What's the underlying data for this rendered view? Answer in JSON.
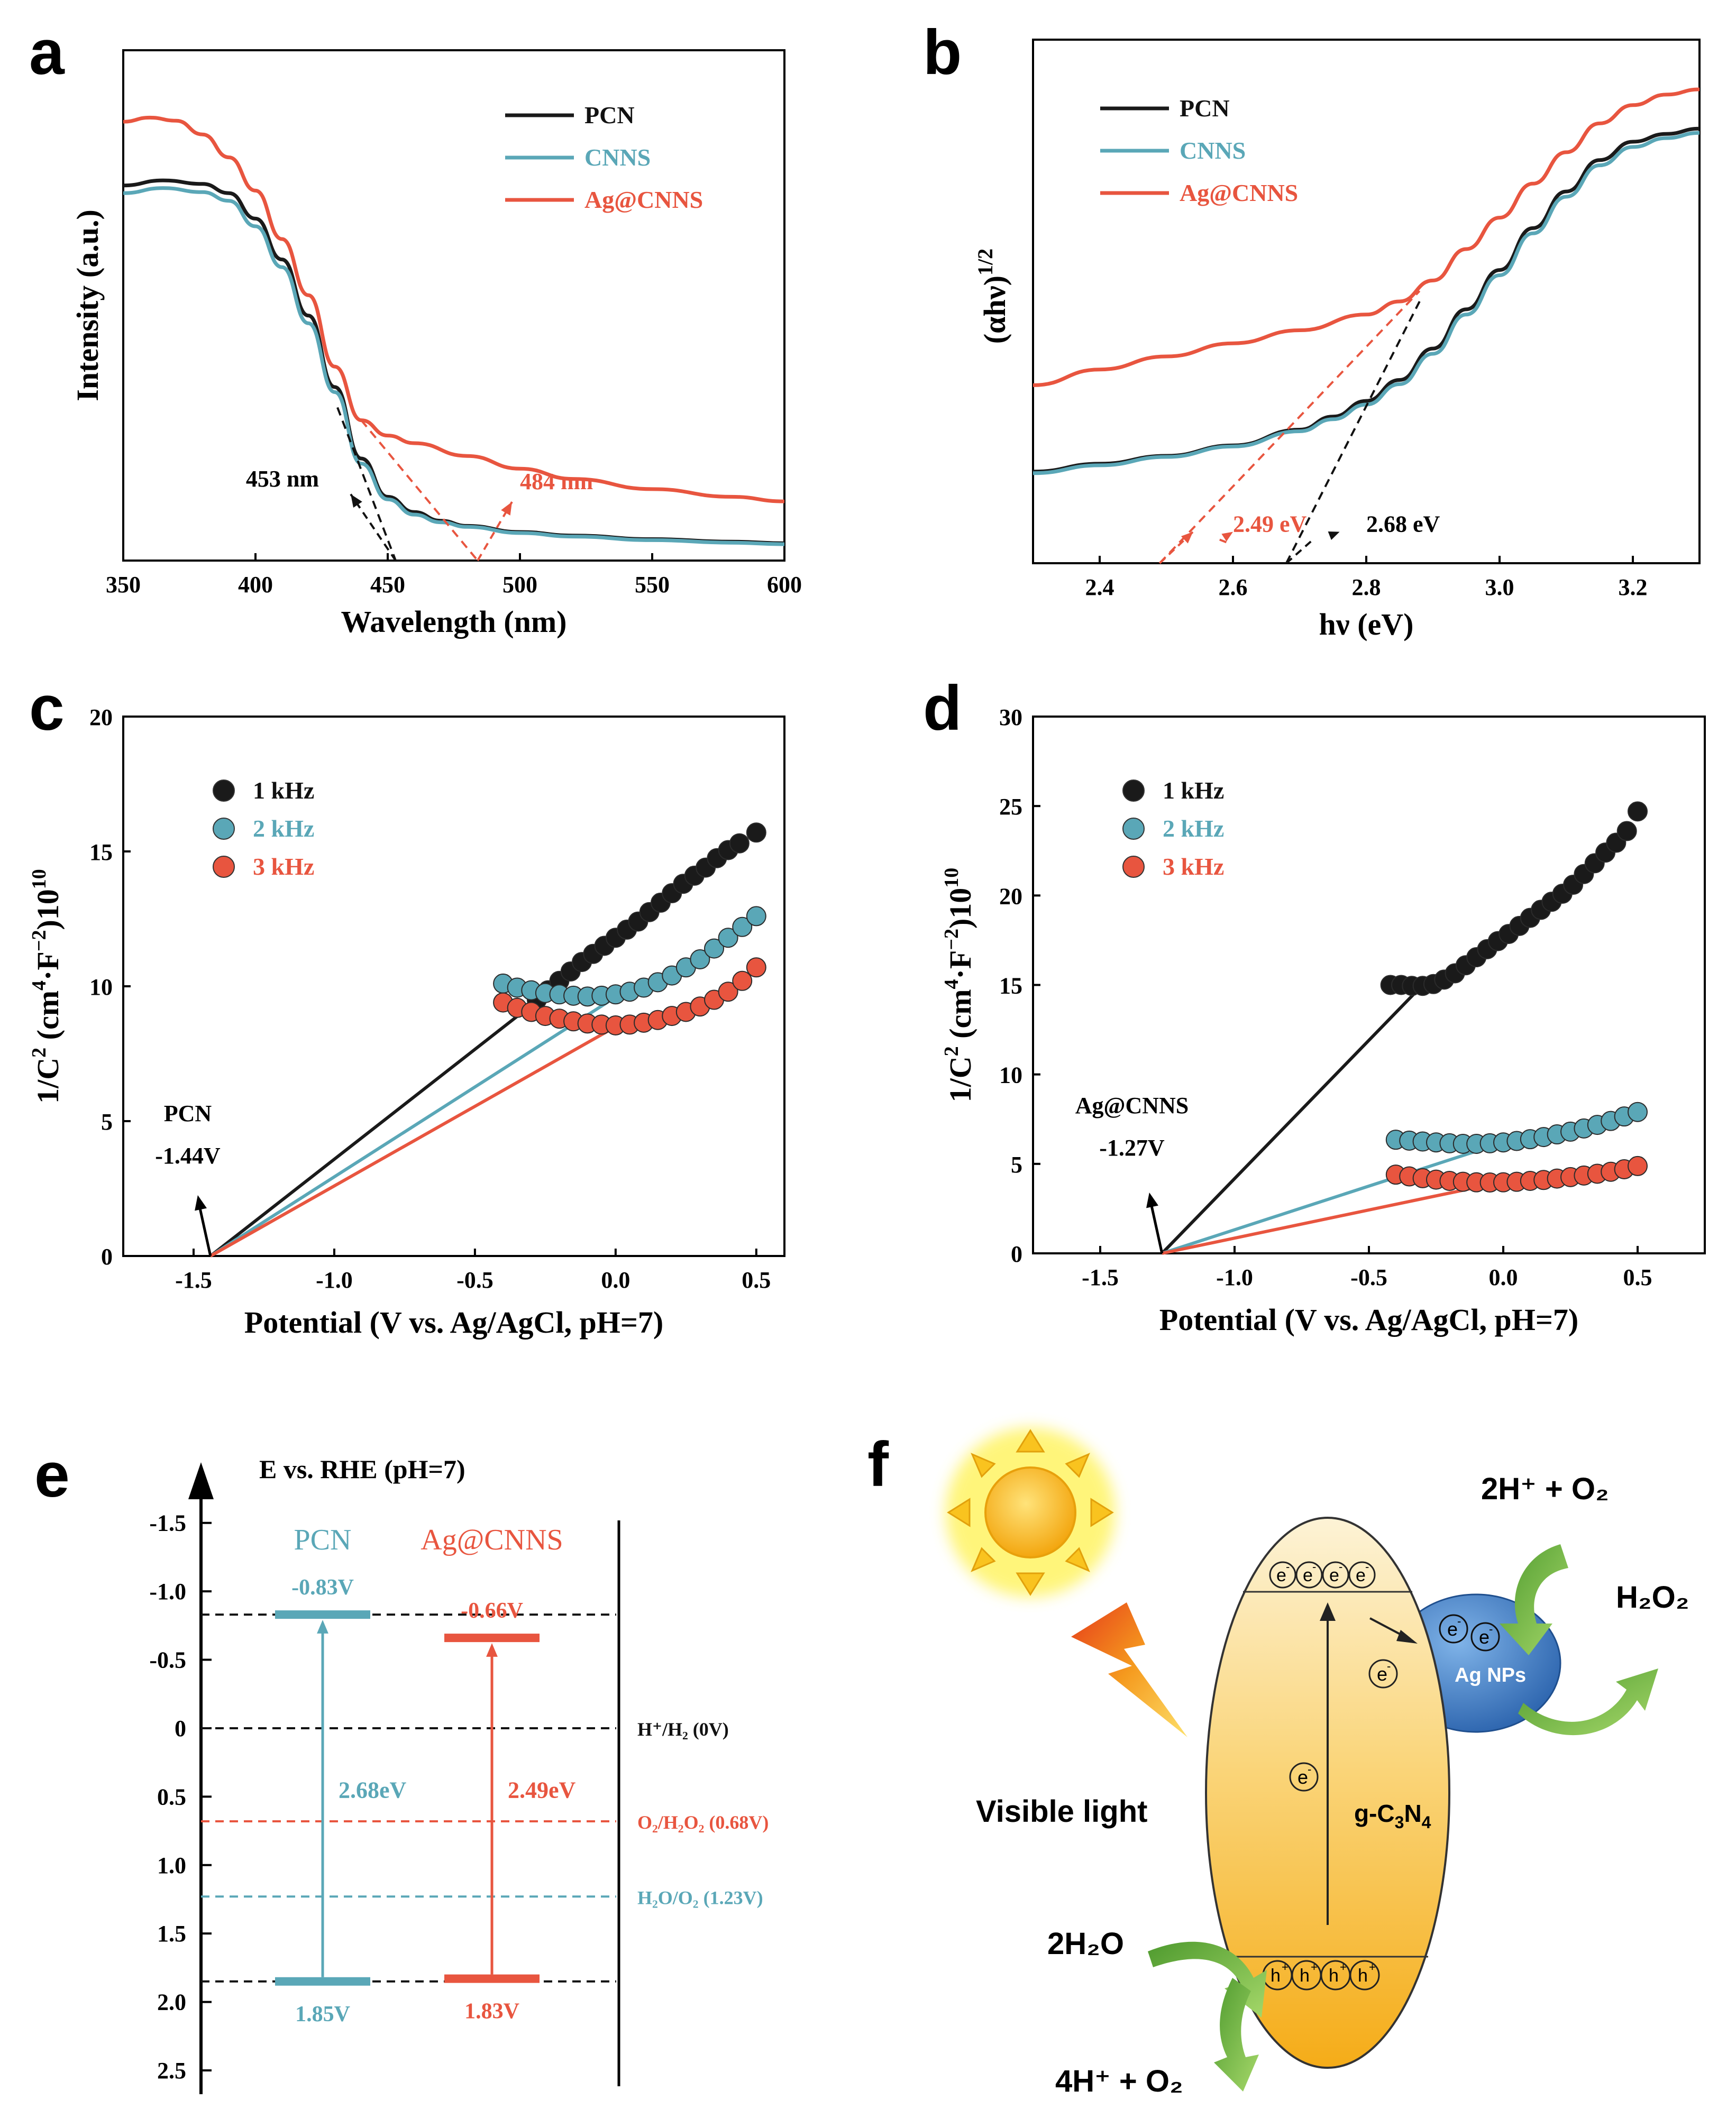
{
  "colors": {
    "pcn": "#1a1a1a",
    "cnns": "#5aa7b7",
    "ag": "#e8553f",
    "axis": "#000000",
    "sun": "#f6b619",
    "sun_glow": "#ffe94a",
    "ellipse_top": "#fdf0cc",
    "ellipse_bottom": "#f6b51c",
    "ag_np": "#3d7cc4",
    "arrow_green": "#7cc241",
    "bolt": "#f5a81c"
  },
  "panels": {
    "a": "a",
    "b": "b",
    "c": "c",
    "d": "d",
    "e": "e",
    "f": "f"
  },
  "chart_data": [
    {
      "id": "a",
      "type": "line",
      "xlabel": "Wavelength (nm)",
      "ylabel": "Intensity (a.u.)",
      "xlim": [
        350,
        600
      ],
      "ylim": [
        0,
        1.0
      ],
      "xticks": [
        350,
        400,
        450,
        500,
        550,
        600
      ],
      "legend": [
        "PCN",
        "CNNS",
        "Ag@CNNS"
      ],
      "series": [
        {
          "name": "PCN",
          "x": [
            350,
            365,
            380,
            390,
            400,
            410,
            420,
            430,
            440,
            450,
            460,
            470,
            480,
            500,
            520,
            550,
            580,
            600
          ],
          "y": [
            0.735,
            0.745,
            0.738,
            0.72,
            0.67,
            0.59,
            0.48,
            0.34,
            0.2,
            0.125,
            0.095,
            0.078,
            0.068,
            0.056,
            0.049,
            0.042,
            0.037,
            0.034
          ]
        },
        {
          "name": "CNNS",
          "x": [
            350,
            365,
            380,
            390,
            400,
            410,
            420,
            430,
            440,
            450,
            460,
            470,
            480,
            500,
            520,
            550,
            580,
            600
          ],
          "y": [
            0.72,
            0.73,
            0.722,
            0.705,
            0.655,
            0.575,
            0.465,
            0.33,
            0.19,
            0.12,
            0.09,
            0.075,
            0.066,
            0.054,
            0.047,
            0.04,
            0.035,
            0.032
          ]
        },
        {
          "name": "Ag@CNNS",
          "x": [
            350,
            360,
            370,
            380,
            390,
            400,
            410,
            420,
            430,
            440,
            450,
            460,
            480,
            500,
            520,
            550,
            580,
            600
          ],
          "y": [
            0.86,
            0.868,
            0.862,
            0.835,
            0.79,
            0.725,
            0.63,
            0.52,
            0.38,
            0.275,
            0.245,
            0.23,
            0.205,
            0.18,
            0.16,
            0.14,
            0.125,
            0.116
          ]
        }
      ],
      "tangents": [
        {
          "name": "PCN",
          "x": [
            431,
            453
          ],
          "y": [
            0.3,
            0
          ]
        },
        {
          "name": "Ag@CNNS",
          "x": [
            440,
            484
          ],
          "y": [
            0.275,
            0
          ]
        }
      ],
      "annotations": [
        {
          "text": "453 nm",
          "series": "PCN"
        },
        {
          "text": "484 nm",
          "series": "Ag@CNNS"
        }
      ]
    },
    {
      "id": "b",
      "type": "line",
      "xlabel": "hν (eV)",
      "ylabel": "(αhν)",
      "ylabel_sup": "1/2",
      "xlim": [
        2.3,
        3.3
      ],
      "ylim": [
        0,
        1.0
      ],
      "xticks": [
        2.4,
        2.6,
        2.8,
        3.0,
        3.2
      ],
      "legend": [
        "PCN",
        "CNNS",
        "Ag@CNNS"
      ],
      "series": [
        {
          "name": "PCN",
          "x": [
            2.3,
            2.4,
            2.5,
            2.6,
            2.7,
            2.75,
            2.8,
            2.85,
            2.9,
            2.95,
            3.0,
            3.05,
            3.1,
            3.15,
            3.2,
            3.25,
            3.3
          ],
          "y": [
            0.175,
            0.19,
            0.205,
            0.225,
            0.255,
            0.28,
            0.31,
            0.35,
            0.41,
            0.485,
            0.56,
            0.64,
            0.71,
            0.77,
            0.805,
            0.82,
            0.83
          ]
        },
        {
          "name": "CNNS",
          "x": [
            2.3,
            2.4,
            2.5,
            2.6,
            2.7,
            2.75,
            2.8,
            2.85,
            2.9,
            2.95,
            3.0,
            3.05,
            3.1,
            3.15,
            3.2,
            3.25,
            3.3
          ],
          "y": [
            0.172,
            0.187,
            0.203,
            0.223,
            0.252,
            0.275,
            0.303,
            0.342,
            0.4,
            0.475,
            0.55,
            0.63,
            0.7,
            0.76,
            0.795,
            0.812,
            0.822
          ]
        },
        {
          "name": "Ag@CNNS",
          "x": [
            2.3,
            2.4,
            2.5,
            2.6,
            2.7,
            2.8,
            2.85,
            2.9,
            2.95,
            3.0,
            3.05,
            3.1,
            3.15,
            3.2,
            3.25,
            3.3
          ],
          "y": [
            0.34,
            0.37,
            0.395,
            0.42,
            0.445,
            0.475,
            0.5,
            0.54,
            0.6,
            0.66,
            0.725,
            0.785,
            0.84,
            0.875,
            0.895,
            0.905
          ]
        }
      ],
      "tangents": [
        {
          "name": "PCN",
          "x": [
            2.68,
            2.88
          ],
          "y": [
            0,
            0.5
          ]
        },
        {
          "name": "Ag@CNNS",
          "x": [
            2.49,
            2.88
          ],
          "y": [
            0,
            0.52
          ]
        }
      ],
      "annotations": [
        {
          "text": "2.68 eV",
          "series": "PCN"
        },
        {
          "text": "2.49 eV",
          "series": "Ag@CNNS"
        }
      ]
    },
    {
      "id": "c",
      "type": "scatter",
      "xlabel": "Potential (V vs. Ag/AgCl, pH=7)",
      "ylabel_parts": [
        "1/C",
        "2",
        " (cm",
        "4",
        "·F",
        "−2",
        ")10",
        "10"
      ],
      "xlim": [
        -1.75,
        0.6
      ],
      "ylim": [
        0,
        20
      ],
      "xticks": [
        -1.5,
        -1.0,
        -0.5,
        0.0,
        0.5
      ],
      "xticklabels": [
        "-1.5",
        "-1.0",
        "-0.5",
        "0.0",
        "0.5"
      ],
      "yticks": [
        0,
        5,
        10,
        15,
        20
      ],
      "legend": [
        "1 kHz",
        "2 kHz",
        "3 kHz"
      ],
      "series": [
        {
          "name": "1 kHz",
          "x": [
            -0.28,
            -0.24,
            -0.2,
            -0.16,
            -0.12,
            -0.08,
            -0.04,
            0.0,
            0.04,
            0.08,
            0.12,
            0.16,
            0.2,
            0.24,
            0.28,
            0.32,
            0.36,
            0.4,
            0.44,
            0.5
          ],
          "y": [
            9.5,
            9.85,
            10.2,
            10.55,
            10.9,
            11.2,
            11.5,
            11.8,
            12.1,
            12.4,
            12.75,
            13.1,
            13.45,
            13.8,
            14.1,
            14.4,
            14.75,
            15.05,
            15.3,
            15.7
          ]
        },
        {
          "name": "2 kHz",
          "x": [
            -0.4,
            -0.35,
            -0.3,
            -0.25,
            -0.2,
            -0.15,
            -0.1,
            -0.05,
            0.0,
            0.05,
            0.1,
            0.15,
            0.2,
            0.25,
            0.3,
            0.35,
            0.4,
            0.45,
            0.5
          ],
          "y": [
            10.1,
            9.95,
            9.85,
            9.75,
            9.7,
            9.65,
            9.62,
            9.65,
            9.7,
            9.8,
            9.95,
            10.15,
            10.4,
            10.7,
            11.0,
            11.4,
            11.8,
            12.2,
            12.6
          ]
        },
        {
          "name": "3 kHz",
          "x": [
            -0.4,
            -0.35,
            -0.3,
            -0.25,
            -0.2,
            -0.15,
            -0.1,
            -0.05,
            0.0,
            0.05,
            0.1,
            0.15,
            0.2,
            0.25,
            0.3,
            0.35,
            0.4,
            0.45,
            0.5
          ],
          "y": [
            9.4,
            9.2,
            9.05,
            8.9,
            8.8,
            8.7,
            8.62,
            8.58,
            8.55,
            8.58,
            8.65,
            8.75,
            8.9,
            9.05,
            9.25,
            9.5,
            9.8,
            10.2,
            10.7
          ]
        }
      ],
      "fit_lines": [
        {
          "name": "1 kHz",
          "x": [
            -1.44,
            -0.25
          ],
          "y": [
            0,
            9.7
          ]
        },
        {
          "name": "2 kHz",
          "x": [
            -1.44,
            0.0
          ],
          "y": [
            0,
            9.6
          ]
        },
        {
          "name": "3 kHz",
          "x": [
            -1.44,
            0.0
          ],
          "y": [
            0,
            8.5
          ]
        }
      ],
      "annotation": {
        "label": "PCN",
        "value": "-1.44V",
        "x": -1.44
      }
    },
    {
      "id": "d",
      "type": "scatter",
      "xlabel": "Potential (V vs. Ag/AgCl, pH=7)",
      "ylabel_parts": [
        "1/C",
        "2",
        " (cm",
        "4",
        "·F",
        "−2",
        ")10",
        "10"
      ],
      "xlim": [
        -1.75,
        0.75
      ],
      "ylim": [
        0,
        30
      ],
      "xticks": [
        -1.5,
        -1.0,
        -0.5,
        0.0,
        0.5
      ],
      "xticklabels": [
        "-1.5",
        "-1.0",
        "-0.5",
        "0.0",
        "0.5"
      ],
      "yticks": [
        0,
        5,
        10,
        15,
        20,
        25,
        30
      ],
      "legend": [
        "1 kHz",
        "2 kHz",
        "3 kHz"
      ],
      "series": [
        {
          "name": "1 kHz",
          "x": [
            -0.42,
            -0.38,
            -0.34,
            -0.3,
            -0.26,
            -0.22,
            -0.18,
            -0.14,
            -0.1,
            -0.06,
            -0.02,
            0.02,
            0.06,
            0.1,
            0.14,
            0.18,
            0.22,
            0.26,
            0.3,
            0.34,
            0.38,
            0.42,
            0.46,
            0.5
          ],
          "y": [
            15.0,
            15.0,
            14.95,
            14.95,
            15.05,
            15.3,
            15.65,
            16.1,
            16.55,
            17.0,
            17.45,
            17.85,
            18.3,
            18.75,
            19.2,
            19.65,
            20.1,
            20.6,
            21.2,
            21.8,
            22.4,
            22.95,
            23.6,
            24.7
          ]
        },
        {
          "name": "2 kHz",
          "x": [
            -0.4,
            -0.35,
            -0.3,
            -0.25,
            -0.2,
            -0.15,
            -0.1,
            -0.05,
            0.0,
            0.05,
            0.1,
            0.15,
            0.2,
            0.25,
            0.3,
            0.35,
            0.4,
            0.45,
            0.5
          ],
          "y": [
            6.35,
            6.3,
            6.25,
            6.2,
            6.15,
            6.12,
            6.12,
            6.15,
            6.2,
            6.28,
            6.38,
            6.5,
            6.65,
            6.8,
            6.98,
            7.18,
            7.4,
            7.65,
            7.9
          ]
        },
        {
          "name": "3 kHz",
          "x": [
            -0.4,
            -0.35,
            -0.3,
            -0.25,
            -0.2,
            -0.15,
            -0.1,
            -0.05,
            0.0,
            0.05,
            0.1,
            0.15,
            0.2,
            0.25,
            0.3,
            0.35,
            0.4,
            0.45,
            0.5
          ],
          "y": [
            4.4,
            4.3,
            4.2,
            4.12,
            4.05,
            4.0,
            3.97,
            3.96,
            3.97,
            4.0,
            4.05,
            4.1,
            4.18,
            4.26,
            4.35,
            4.45,
            4.56,
            4.7,
            4.88
          ]
        }
      ],
      "fit_lines": [
        {
          "name": "1 kHz",
          "x": [
            -1.27,
            -0.3
          ],
          "y": [
            0,
            15.0
          ]
        },
        {
          "name": "2 kHz",
          "x": [
            -1.27,
            0.0
          ],
          "y": [
            0,
            6.2
          ]
        },
        {
          "name": "3 kHz",
          "x": [
            -1.27,
            0.0
          ],
          "y": [
            0,
            4.0
          ]
        }
      ],
      "annotation": {
        "label": "Ag@CNNS",
        "value": "-1.27V",
        "x": -1.27
      }
    },
    {
      "id": "e",
      "type": "bar",
      "title": "E vs. RHE (pH=7)",
      "ylim": [
        -1.75,
        2.5
      ],
      "yticks": [
        -1.5,
        -1.0,
        -0.5,
        0,
        0.5,
        1.0,
        1.5,
        2.0,
        2.5
      ],
      "yticklabels": [
        "-1.5",
        "-1.0",
        "-0.5",
        "0",
        "0.5",
        "1.0",
        "1.5",
        "2.0",
        "2.5"
      ],
      "materials": [
        {
          "name": "PCN",
          "cb": -0.83,
          "vb": 1.85,
          "cb_label": "-0.83V",
          "vb_label": "1.85V",
          "gap_label": "2.68eV"
        },
        {
          "name": "Ag@CNNS",
          "cb": -0.66,
          "vb": 1.83,
          "cb_label": "-0.66V",
          "vb_label": "1.83V",
          "gap_label": "2.49eV"
        }
      ],
      "reference_levels": [
        {
          "value": 0,
          "label": "H⁺/H₂ (0V)"
        },
        {
          "value": 0.68,
          "label": "O₂/H₂O₂ (0.68V)"
        },
        {
          "value": 1.23,
          "label": "H₂O/O₂ (1.23V)"
        }
      ]
    }
  ],
  "panel_f": {
    "visible_light": "Visible light",
    "semiconductor": "g-C3N4",
    "ag_label": "Ag NPs",
    "electron": "e",
    "hole": "h",
    "reactant_top": "2H⁺ + O₂",
    "product_top": "H₂O₂",
    "reactant_bottom": "2H₂O",
    "product_bottom": "4H⁺ + O₂"
  }
}
